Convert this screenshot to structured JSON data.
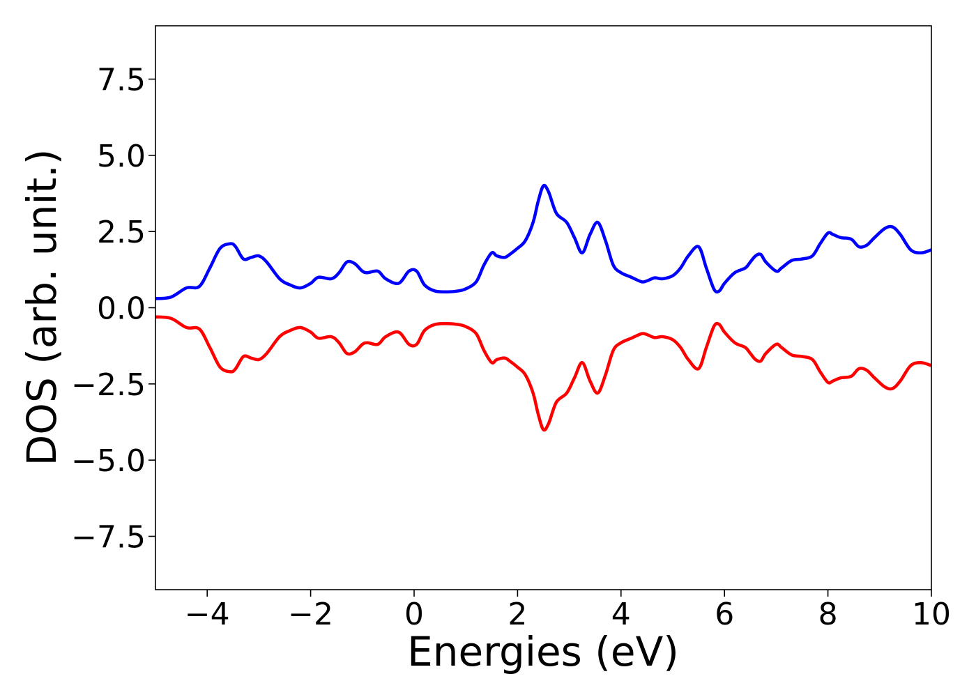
{
  "chart_data": {
    "type": "line",
    "title": "",
    "xlabel": "Energies (eV)",
    "ylabel": "DOS (arb. unit.)",
    "xlim": [
      -5,
      10
    ],
    "ylim": [
      -9.25,
      9.25
    ],
    "x_ticks": [
      -4,
      -2,
      0,
      2,
      4,
      6,
      8,
      10
    ],
    "x_tick_labels": [
      "−4",
      "−2",
      "0",
      "2",
      "4",
      "6",
      "8",
      "10"
    ],
    "y_ticks": [
      7.5,
      5.0,
      2.5,
      0.0,
      -2.5,
      -5.0,
      -7.5
    ],
    "y_tick_labels": [
      "7.5",
      "5.0",
      "2.5",
      "0.0",
      "−2.5",
      "−5.0",
      "−7.5"
    ],
    "grid": false,
    "legend": "none",
    "series": [
      {
        "color": "#0000ff",
        "x": [
          -5.0,
          -4.7,
          -4.4,
          -4.15,
          -3.95,
          -3.75,
          -3.55,
          -3.45,
          -3.3,
          -3.15,
          -3.0,
          -2.85,
          -2.6,
          -2.4,
          -2.2,
          -2.0,
          -1.85,
          -1.6,
          -1.45,
          -1.3,
          -1.15,
          -1.0,
          -0.9,
          -0.7,
          -0.55,
          -0.3,
          -0.1,
          0.05,
          0.2,
          0.4,
          0.65,
          0.85,
          1.0,
          1.2,
          1.35,
          1.5,
          1.6,
          1.75,
          1.85,
          2.0,
          2.15,
          2.3,
          2.4,
          2.5,
          2.6,
          2.75,
          2.95,
          3.1,
          3.25,
          3.4,
          3.55,
          3.7,
          3.85,
          4.0,
          4.2,
          4.4,
          4.5,
          4.65,
          4.8,
          5.0,
          5.15,
          5.3,
          5.5,
          5.65,
          5.8,
          5.9,
          6.0,
          6.2,
          6.4,
          6.5,
          6.6,
          6.7,
          6.8,
          7.0,
          7.1,
          7.3,
          7.5,
          7.7,
          7.85,
          8.0,
          8.1,
          8.25,
          8.45,
          8.6,
          8.75,
          8.9,
          9.1,
          9.25,
          9.4,
          9.6,
          9.8,
          10.0
        ],
        "y": [
          0.3,
          0.35,
          0.65,
          0.7,
          1.3,
          1.95,
          2.1,
          2.0,
          1.6,
          1.65,
          1.7,
          1.5,
          0.95,
          0.75,
          0.65,
          0.8,
          1.0,
          0.95,
          1.15,
          1.5,
          1.45,
          1.2,
          1.15,
          1.2,
          0.95,
          0.8,
          1.2,
          1.2,
          0.75,
          0.55,
          0.52,
          0.55,
          0.62,
          0.85,
          1.4,
          1.8,
          1.7,
          1.65,
          1.75,
          1.95,
          2.2,
          2.8,
          3.5,
          4.0,
          3.8,
          3.1,
          2.8,
          2.3,
          1.8,
          2.4,
          2.8,
          2.2,
          1.4,
          1.15,
          1.0,
          0.85,
          0.88,
          0.98,
          0.95,
          1.05,
          1.3,
          1.7,
          2.0,
          1.3,
          0.6,
          0.55,
          0.8,
          1.15,
          1.3,
          1.5,
          1.7,
          1.75,
          1.5,
          1.2,
          1.3,
          1.55,
          1.6,
          1.7,
          2.1,
          2.45,
          2.4,
          2.3,
          2.25,
          2.0,
          2.05,
          2.3,
          2.6,
          2.65,
          2.4,
          1.9,
          1.8,
          1.9
        ]
      },
      {
        "color": "#ff0000",
        "x": [
          -5.0,
          -4.7,
          -4.4,
          -4.15,
          -3.95,
          -3.75,
          -3.55,
          -3.45,
          -3.3,
          -3.15,
          -3.0,
          -2.85,
          -2.6,
          -2.4,
          -2.2,
          -2.0,
          -1.85,
          -1.6,
          -1.45,
          -1.3,
          -1.15,
          -1.0,
          -0.9,
          -0.7,
          -0.55,
          -0.3,
          -0.1,
          0.05,
          0.2,
          0.4,
          0.65,
          0.85,
          1.0,
          1.2,
          1.35,
          1.5,
          1.6,
          1.75,
          1.85,
          2.0,
          2.15,
          2.3,
          2.4,
          2.5,
          2.6,
          2.75,
          2.95,
          3.1,
          3.25,
          3.4,
          3.55,
          3.7,
          3.85,
          4.0,
          4.2,
          4.4,
          4.5,
          4.65,
          4.8,
          5.0,
          5.15,
          5.3,
          5.5,
          5.65,
          5.8,
          5.9,
          6.0,
          6.2,
          6.4,
          6.5,
          6.6,
          6.7,
          6.8,
          7.0,
          7.1,
          7.3,
          7.5,
          7.7,
          7.85,
          8.0,
          8.1,
          8.25,
          8.45,
          8.6,
          8.75,
          8.9,
          9.1,
          9.25,
          9.4,
          9.6,
          9.8,
          10.0
        ],
        "y": [
          -0.3,
          -0.35,
          -0.65,
          -0.7,
          -1.3,
          -1.95,
          -2.1,
          -2.0,
          -1.6,
          -1.65,
          -1.7,
          -1.5,
          -0.95,
          -0.75,
          -0.65,
          -0.8,
          -1.0,
          -0.95,
          -1.15,
          -1.5,
          -1.45,
          -1.2,
          -1.15,
          -1.2,
          -0.95,
          -0.8,
          -1.2,
          -1.2,
          -0.75,
          -0.55,
          -0.52,
          -0.55,
          -0.62,
          -0.85,
          -1.4,
          -1.8,
          -1.7,
          -1.65,
          -1.75,
          -1.95,
          -2.2,
          -2.8,
          -3.5,
          -4.0,
          -3.8,
          -3.1,
          -2.8,
          -2.3,
          -1.8,
          -2.4,
          -2.8,
          -2.2,
          -1.4,
          -1.15,
          -1.0,
          -0.85,
          -0.88,
          -0.98,
          -0.95,
          -1.05,
          -1.3,
          -1.7,
          -2.0,
          -1.3,
          -0.6,
          -0.55,
          -0.8,
          -1.15,
          -1.3,
          -1.5,
          -1.7,
          -1.75,
          -1.5,
          -1.2,
          -1.3,
          -1.55,
          -1.6,
          -1.7,
          -2.1,
          -2.45,
          -2.4,
          -2.3,
          -2.25,
          -2.0,
          -2.05,
          -2.3,
          -2.6,
          -2.65,
          -2.4,
          -1.9,
          -1.8,
          -1.9
        ]
      }
    ]
  }
}
